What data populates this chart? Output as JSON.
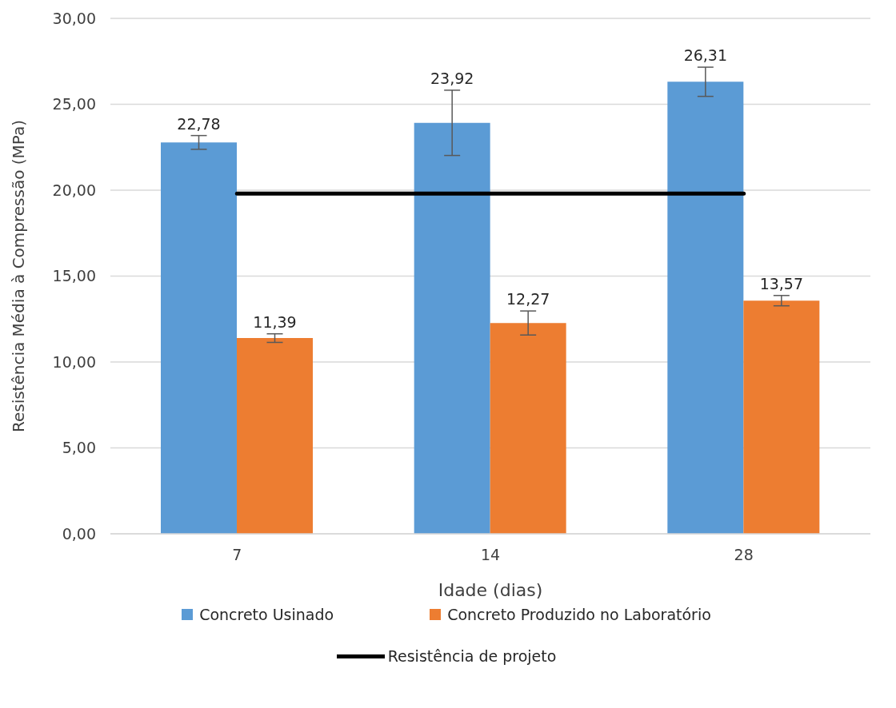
{
  "chart_data": {
    "type": "bar",
    "xlabel": "Idade (dias)",
    "ylabel": "Resistência Média à Compressão (MPa)",
    "categories": [
      "7",
      "14",
      "28"
    ],
    "series": [
      {
        "name": "Concreto Usinado",
        "color": "#5b9bd5",
        "values": [
          22.78,
          23.92,
          26.31
        ],
        "errors": [
          0.4,
          1.9,
          0.85
        ],
        "value_labels": [
          "22,78",
          "23,92",
          "26,31"
        ]
      },
      {
        "name": "Concreto Produzido no Laboratório",
        "color": "#ed7d31",
        "values": [
          11.39,
          12.27,
          13.57
        ],
        "errors": [
          0.25,
          0.7,
          0.3
        ],
        "value_labels": [
          "11,39",
          "12,27",
          "13,57"
        ]
      },
      {
        "name": "Resistência de projeto",
        "type": "line",
        "color": "#000000",
        "values": [
          19.8,
          19.8,
          19.8
        ]
      }
    ],
    "ylim": [
      0,
      30
    ],
    "yticks": [
      {
        "value": 0,
        "label": "0,00"
      },
      {
        "value": 5,
        "label": "5,00"
      },
      {
        "value": 10,
        "label": "10,00"
      },
      {
        "value": 15,
        "label": "15,00"
      },
      {
        "value": 20,
        "label": "20,00"
      },
      {
        "value": 25,
        "label": "25,00"
      },
      {
        "value": 30,
        "label": "30,00"
      }
    ],
    "grid": "y",
    "legend": "bottom",
    "marker": "none",
    "line_style": "solid"
  }
}
